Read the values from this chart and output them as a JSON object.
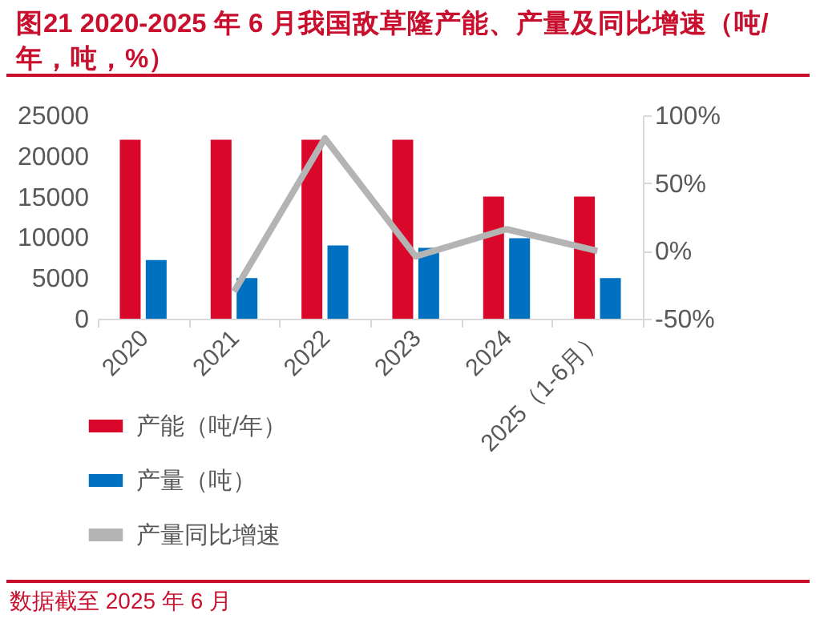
{
  "chart_data": {
    "type": "bar",
    "title": "图21  2020-2025 年 6 月我国敌草隆产能、产量及同比增速（吨/年，吨，%）",
    "categories": [
      "2020",
      "2021",
      "2022",
      "2023",
      "2024",
      "2025（1-6月）"
    ],
    "series": [
      {
        "name": "产能（吨/年）",
        "color": "#d9082a",
        "values": [
          22000,
          22000,
          22000,
          22000,
          15000,
          15000
        ]
      },
      {
        "name": "产量（吨）",
        "color": "#0070c0",
        "values": [
          7200,
          5000,
          9000,
          8700,
          9900,
          5000
        ]
      },
      {
        "name": "产量同比增速",
        "type": "line",
        "axis": "y2",
        "color": "#b4b4b4",
        "values": [
          null,
          -30,
          83,
          -4,
          16,
          0
        ]
      }
    ],
    "ylim": [
      0,
      25000
    ],
    "yticks": [
      0,
      5000,
      10000,
      15000,
      20000,
      25000
    ],
    "y2lim": [
      -50,
      100
    ],
    "y2ticks": [
      {
        "value": -50,
        "label": "-50%"
      },
      {
        "value": 0,
        "label": "0%"
      },
      {
        "value": 50,
        "label": "50%"
      },
      {
        "value": 100,
        "label": "100%"
      }
    ],
    "legend": "bottom",
    "grid": false,
    "annotations": [
      "数据截至 2025 年 6 月"
    ]
  }
}
